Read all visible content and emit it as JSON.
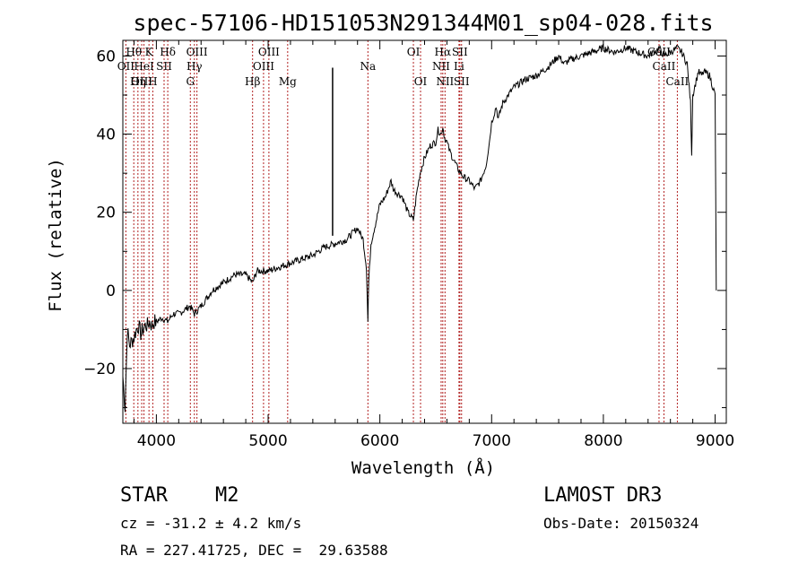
{
  "chart_data": {
    "type": "line",
    "title": "spec-57106-HD151053N291344M01_sp04-028.fits",
    "xlabel": "Wavelength (Å)",
    "ylabel": "Flux (relative)",
    "xlim": [
      3700,
      9100
    ],
    "ylim": [
      -34,
      64
    ],
    "xticks": [
      4000,
      5000,
      6000,
      7000,
      8000,
      9000
    ],
    "yticks": [
      -20,
      0,
      20,
      40,
      60
    ],
    "grid": false,
    "series": [
      {
        "name": "spectrum",
        "x": [
          3700,
          3720,
          3740,
          3760,
          3780,
          3800,
          3820,
          3840,
          3860,
          3880,
          3900,
          3920,
          3940,
          3960,
          3980,
          4000,
          4050,
          4100,
          4150,
          4200,
          4250,
          4300,
          4340,
          4400,
          4450,
          4500,
          4600,
          4700,
          4800,
          4861,
          4900,
          5000,
          5100,
          5200,
          5300,
          5400,
          5500,
          5600,
          5700,
          5800,
          5850,
          5880,
          5893,
          5900,
          5920,
          5960,
          6000,
          6050,
          6100,
          6120,
          6150,
          6200,
          6250,
          6300,
          6330,
          6360,
          6400,
          6450,
          6500,
          6520,
          6550,
          6563,
          6580,
          6600,
          6620,
          6650,
          6700,
          6750,
          6800,
          6850,
          6900,
          6950,
          6980,
          7000,
          7020,
          7040,
          7060,
          7100,
          7150,
          7200,
          7300,
          7400,
          7500,
          7600,
          7650,
          7700,
          7800,
          7900,
          8000,
          8100,
          8200,
          8300,
          8400,
          8450,
          8500,
          8542,
          8600,
          8662,
          8700,
          8750,
          8780,
          8790,
          8800,
          8850,
          8880,
          8900,
          8950,
          9000,
          9010
        ],
        "y": [
          -22,
          -30,
          -10,
          -14,
          -13,
          -12,
          -10,
          -9,
          -11,
          -10,
          -9,
          -9,
          -8,
          -9,
          -8,
          -8,
          -7,
          -8,
          -6,
          -6,
          -5,
          -4,
          -6,
          -4,
          -2,
          0,
          2,
          4,
          4,
          2,
          5,
          5,
          6,
          7,
          8,
          9,
          11,
          12,
          13,
          16,
          13,
          6,
          -8,
          2,
          12,
          17,
          22,
          24,
          28,
          26,
          25,
          24,
          20,
          18,
          25,
          30,
          34,
          37,
          38,
          41,
          40,
          42,
          39,
          38,
          36,
          34,
          31,
          29,
          28,
          26,
          28,
          32,
          38,
          43,
          45,
          47,
          44,
          48,
          50,
          52,
          54,
          55,
          57,
          60,
          58,
          59,
          60,
          61,
          62,
          61,
          62,
          61,
          60,
          61,
          62,
          60,
          61,
          62,
          61,
          58,
          48,
          35,
          50,
          56,
          55,
          56,
          55,
          50,
          0
        ]
      }
    ],
    "spike": {
      "x": 5577,
      "y": 57
    },
    "emission_lines": [
      {
        "label": "Hθ",
        "x": 3798,
        "row": 1
      },
      {
        "label": "K",
        "x": 3934,
        "row": 1
      },
      {
        "label": "Hδ",
        "x": 4102,
        "row": 1
      },
      {
        "label": "OIII",
        "x": 4363,
        "row": 1
      },
      {
        "label": "OIII",
        "x": 5007,
        "row": 1
      },
      {
        "label": "OI",
        "x": 6300,
        "row": 1
      },
      {
        "label": "Hα",
        "x": 6563,
        "row": 1
      },
      {
        "label": "SII",
        "x": 6716,
        "row": 1
      },
      {
        "label": "CaII",
        "x": 8498,
        "row": 1
      },
      {
        "label": "OII",
        "x": 3727,
        "row": 2
      },
      {
        "label": "HeI",
        "x": 3889,
        "row": 2
      },
      {
        "label": "SII",
        "x": 4069,
        "row": 2
      },
      {
        "label": "Hγ",
        "x": 4340,
        "row": 2
      },
      {
        "label": "OIII",
        "x": 4959,
        "row": 2
      },
      {
        "label": "NII",
        "x": 6548,
        "row": 2
      },
      {
        "label": "Li",
        "x": 6708,
        "row": 2
      },
      {
        "label": "CaII",
        "x": 8542,
        "row": 2
      },
      {
        "label": "OIII",
        "x": 3869,
        "row": 3
      },
      {
        "label": "Hη",
        "x": 3835,
        "row": 3
      },
      {
        "label": "H",
        "x": 3968,
        "row": 3
      },
      {
        "label": "G",
        "x": 4304,
        "row": 3
      },
      {
        "label": "Hβ",
        "x": 4861,
        "row": 3
      },
      {
        "label": "Mg",
        "x": 5175,
        "row": 3
      },
      {
        "label": "Na",
        "x": 5893,
        "row": 2
      },
      {
        "label": "OI",
        "x": 6364,
        "row": 3
      },
      {
        "label": "NII",
        "x": 6583,
        "row": 3
      },
      {
        "label": "SII",
        "x": 6731,
        "row": 3
      },
      {
        "label": "CaII",
        "x": 8662,
        "row": 3
      }
    ],
    "extra_lines": [
      3934,
      3968,
      4861,
      5007,
      5175,
      5893,
      6300,
      6364,
      6548,
      6563,
      6583,
      6708,
      6716,
      6731,
      8498,
      8542,
      8662
    ],
    "line_color": "#000000",
    "marker_color": "#b22222"
  },
  "info": {
    "class_label": "STAR",
    "subclass": "M2",
    "survey": "LAMOST DR3",
    "cz_text": "cz = -31.2 ± 4.2 km/s",
    "obs_date_text": "Obs-Date: 20150324",
    "radec_text": "RA = 227.41725, DEC =  29.63588"
  }
}
